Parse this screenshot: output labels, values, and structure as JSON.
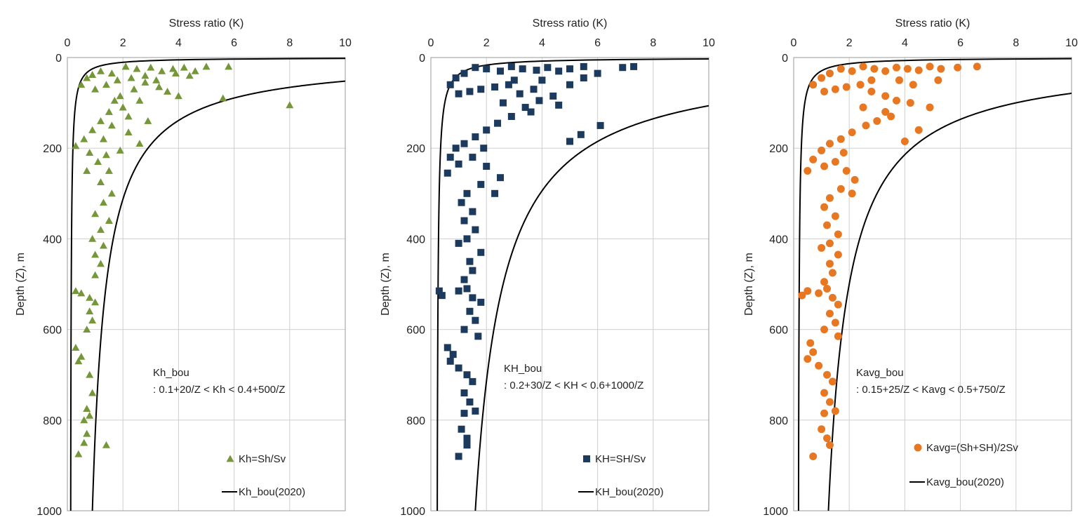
{
  "chart_data": [
    {
      "type": "scatter",
      "xlabel": "Stress ratio (K)",
      "ylabel": "Depth (Z), m",
      "xlim": [
        0,
        10
      ],
      "ylim": [
        0,
        1000
      ],
      "x_ticks": [
        "0",
        "2",
        "4",
        "6",
        "8",
        "10"
      ],
      "y_ticks": [
        "0",
        "200",
        "400",
        "600",
        "800",
        "1000"
      ],
      "grid": true,
      "annotation_line1": "Kh_bou",
      "annotation_line2": ": 0.1+20/Z < Kh < 0.4+500/Z",
      "series": [
        {
          "name": "Kh=Sh/Sv",
          "marker": "triangle",
          "color": "#76963a",
          "lower_a": 0.1,
          "lower_b": 20,
          "upper_a": 0.4,
          "upper_b": 500,
          "points": [
            [
              2.1,
              20
            ],
            [
              2.5,
              25
            ],
            [
              3.0,
              22
            ],
            [
              3.4,
              30
            ],
            [
              3.8,
              25
            ],
            [
              4.2,
              22
            ],
            [
              4.6,
              30
            ],
            [
              5.0,
              20
            ],
            [
              5.8,
              20
            ],
            [
              1.6,
              35
            ],
            [
              1.2,
              30
            ],
            [
              0.9,
              38
            ],
            [
              0.7,
              45
            ],
            [
              0.5,
              60
            ],
            [
              1.0,
              70
            ],
            [
              1.4,
              60
            ],
            [
              1.8,
              50
            ],
            [
              2.3,
              45
            ],
            [
              2.8,
              55
            ],
            [
              3.3,
              65
            ],
            [
              3.6,
              75
            ],
            [
              4.0,
              85
            ],
            [
              2.6,
              95
            ],
            [
              2.0,
              110
            ],
            [
              1.5,
              120
            ],
            [
              1.2,
              140
            ],
            [
              0.9,
              160
            ],
            [
              0.6,
              180
            ],
            [
              0.3,
              195
            ],
            [
              1.6,
              150
            ],
            [
              2.2,
              165
            ],
            [
              2.6,
              190
            ],
            [
              1.9,
              205
            ],
            [
              1.4,
              215
            ],
            [
              1.1,
              230
            ],
            [
              1.5,
              250
            ],
            [
              1.2,
              275
            ],
            [
              1.6,
              300
            ],
            [
              1.3,
              320
            ],
            [
              1.0,
              345
            ],
            [
              1.5,
              360
            ],
            [
              1.2,
              380
            ],
            [
              0.9,
              400
            ],
            [
              1.3,
              415
            ],
            [
              1.0,
              435
            ],
            [
              1.2,
              455
            ],
            [
              1.0,
              480
            ],
            [
              0.3,
              515
            ],
            [
              0.5,
              520
            ],
            [
              0.8,
              530
            ],
            [
              1.0,
              540
            ],
            [
              0.8,
              560
            ],
            [
              0.9,
              580
            ],
            [
              0.7,
              600
            ],
            [
              0.3,
              640
            ],
            [
              0.5,
              660
            ],
            [
              0.4,
              670
            ],
            [
              0.8,
              700
            ],
            [
              0.9,
              740
            ],
            [
              0.7,
              775
            ],
            [
              0.8,
              790
            ],
            [
              0.6,
              800
            ],
            [
              0.7,
              830
            ],
            [
              0.6,
              850
            ],
            [
              1.4,
              855
            ],
            [
              0.4,
              875
            ],
            [
              2.8,
              40
            ],
            [
              3.2,
              50
            ],
            [
              2.4,
              70
            ],
            [
              1.9,
              85
            ],
            [
              1.7,
              95
            ],
            [
              2.2,
              130
            ],
            [
              2.9,
              140
            ],
            [
              5.6,
              90
            ],
            [
              8.0,
              105
            ],
            [
              3.9,
              35
            ],
            [
              4.4,
              40
            ],
            [
              1.3,
              180
            ],
            [
              0.8,
              210
            ],
            [
              0.7,
              250
            ]
          ]
        }
      ],
      "legend_scatter": "Kh=Sh/Sv",
      "legend_line": "Kh_bou(2020)"
    },
    {
      "type": "scatter",
      "xlabel": "Stress ratio (K)",
      "ylabel": "Depth (Z), m",
      "xlim": [
        0,
        10
      ],
      "ylim": [
        0,
        1000
      ],
      "x_ticks": [
        "0",
        "2",
        "4",
        "6",
        "8",
        "10"
      ],
      "y_ticks": [
        "0",
        "200",
        "400",
        "600",
        "800",
        "1000"
      ],
      "grid": true,
      "annotation_line1": "KH_bou",
      "annotation_line2": ": 0.2+30/Z < KH < 0.6+1000/Z",
      "series": [
        {
          "name": "KH=SH/Sv",
          "marker": "square",
          "color": "#1c3a5e",
          "lower_a": 0.2,
          "lower_b": 30,
          "upper_a": 0.6,
          "upper_b": 1000,
          "points": [
            [
              7.3,
              20
            ],
            [
              6.9,
              22
            ],
            [
              5.5,
              20
            ],
            [
              5.0,
              25
            ],
            [
              4.6,
              30
            ],
            [
              4.2,
              22
            ],
            [
              3.8,
              28
            ],
            [
              3.3,
              25
            ],
            [
              2.9,
              20
            ],
            [
              2.5,
              30
            ],
            [
              2.0,
              25
            ],
            [
              1.6,
              22
            ],
            [
              1.2,
              35
            ],
            [
              0.9,
              45
            ],
            [
              0.7,
              60
            ],
            [
              1.0,
              80
            ],
            [
              1.4,
              75
            ],
            [
              1.8,
              70
            ],
            [
              2.3,
              65
            ],
            [
              2.8,
              60
            ],
            [
              3.2,
              80
            ],
            [
              3.7,
              70
            ],
            [
              4.4,
              85
            ],
            [
              5.0,
              60
            ],
            [
              5.5,
              45
            ],
            [
              6.0,
              35
            ],
            [
              6.1,
              150
            ],
            [
              5.4,
              170
            ],
            [
              5.0,
              185
            ],
            [
              4.6,
              105
            ],
            [
              3.9,
              95
            ],
            [
              3.4,
              110
            ],
            [
              2.9,
              130
            ],
            [
              2.4,
              145
            ],
            [
              2.0,
              160
            ],
            [
              1.6,
              175
            ],
            [
              1.2,
              190
            ],
            [
              0.9,
              200
            ],
            [
              0.7,
              220
            ],
            [
              0.6,
              255
            ],
            [
              1.0,
              235
            ],
            [
              1.5,
              220
            ],
            [
              2.0,
              240
            ],
            [
              2.5,
              265
            ],
            [
              1.8,
              280
            ],
            [
              1.3,
              300
            ],
            [
              1.1,
              320
            ],
            [
              1.5,
              340
            ],
            [
              1.2,
              360
            ],
            [
              1.6,
              380
            ],
            [
              1.3,
              400
            ],
            [
              1.0,
              410
            ],
            [
              1.8,
              430
            ],
            [
              1.4,
              450
            ],
            [
              1.5,
              470
            ],
            [
              1.2,
              490
            ],
            [
              0.3,
              515
            ],
            [
              0.4,
              525
            ],
            [
              1.0,
              515
            ],
            [
              1.3,
              510
            ],
            [
              1.5,
              530
            ],
            [
              1.8,
              540
            ],
            [
              1.4,
              560
            ],
            [
              1.6,
              580
            ],
            [
              1.2,
              600
            ],
            [
              1.7,
              615
            ],
            [
              0.6,
              640
            ],
            [
              0.8,
              655
            ],
            [
              0.7,
              670
            ],
            [
              1.0,
              685
            ],
            [
              1.3,
              700
            ],
            [
              1.5,
              715
            ],
            [
              1.2,
              740
            ],
            [
              1.4,
              760
            ],
            [
              1.2,
              785
            ],
            [
              1.6,
              780
            ],
            [
              1.1,
              820
            ],
            [
              1.3,
              840
            ],
            [
              1.3,
              855
            ],
            [
              1.0,
              880
            ],
            [
              3.0,
              50
            ],
            [
              4.0,
              50
            ],
            [
              2.6,
              100
            ],
            [
              3.6,
              120
            ],
            [
              1.9,
              200
            ],
            [
              2.3,
              300
            ]
          ]
        }
      ],
      "legend_scatter": "KH=SH/Sv",
      "legend_line": "KH_bou(2020)"
    },
    {
      "type": "scatter",
      "xlabel": "Stress ratio (K)",
      "ylabel": "Depth (Z), m",
      "xlim": [
        0,
        10
      ],
      "ylim": [
        0,
        1000
      ],
      "x_ticks": [
        "0",
        "2",
        "4",
        "6",
        "8",
        "10"
      ],
      "y_ticks": [
        "0",
        "200",
        "400",
        "600",
        "800",
        "1000"
      ],
      "grid": true,
      "annotation_line1": "Kavg_bou",
      "annotation_line2": ": 0.15+25/Z < Kavg < 0.5+750/Z",
      "series": [
        {
          "name": "Kavg=(Sh+SH)/2Sv",
          "marker": "circle",
          "color": "#e87722",
          "lower_a": 0.15,
          "lower_b": 25,
          "upper_a": 0.5,
          "upper_b": 750,
          "points": [
            [
              6.6,
              20
            ],
            [
              5.9,
              22
            ],
            [
              5.3,
              25
            ],
            [
              4.9,
              20
            ],
            [
              4.5,
              28
            ],
            [
              4.1,
              25
            ],
            [
              3.7,
              22
            ],
            [
              3.3,
              30
            ],
            [
              2.9,
              25
            ],
            [
              2.5,
              20
            ],
            [
              2.1,
              30
            ],
            [
              1.7,
              25
            ],
            [
              1.3,
              35
            ],
            [
              1.0,
              45
            ],
            [
              0.7,
              60
            ],
            [
              1.1,
              75
            ],
            [
              1.5,
              70
            ],
            [
              1.9,
              65
            ],
            [
              2.4,
              60
            ],
            [
              2.8,
              75
            ],
            [
              3.3,
              85
            ],
            [
              3.7,
              95
            ],
            [
              4.2,
              100
            ],
            [
              4.9,
              110
            ],
            [
              4.5,
              160
            ],
            [
              4.0,
              185
            ],
            [
              3.5,
              130
            ],
            [
              3.0,
              140
            ],
            [
              2.6,
              150
            ],
            [
              2.1,
              165
            ],
            [
              1.7,
              180
            ],
            [
              1.3,
              190
            ],
            [
              1.0,
              205
            ],
            [
              0.7,
              225
            ],
            [
              0.5,
              250
            ],
            [
              1.1,
              240
            ],
            [
              1.5,
              230
            ],
            [
              1.9,
              250
            ],
            [
              2.2,
              270
            ],
            [
              1.7,
              290
            ],
            [
              1.3,
              310
            ],
            [
              1.1,
              330
            ],
            [
              1.5,
              350
            ],
            [
              1.2,
              370
            ],
            [
              1.6,
              390
            ],
            [
              1.3,
              410
            ],
            [
              1.0,
              420
            ],
            [
              1.6,
              435
            ],
            [
              1.3,
              455
            ],
            [
              1.4,
              475
            ],
            [
              1.1,
              495
            ],
            [
              0.3,
              525
            ],
            [
              0.5,
              515
            ],
            [
              0.9,
              520
            ],
            [
              1.2,
              510
            ],
            [
              1.4,
              530
            ],
            [
              1.6,
              545
            ],
            [
              1.3,
              565
            ],
            [
              1.5,
              585
            ],
            [
              1.1,
              600
            ],
            [
              1.6,
              615
            ],
            [
              0.6,
              630
            ],
            [
              0.7,
              650
            ],
            [
              0.5,
              665
            ],
            [
              0.9,
              680
            ],
            [
              1.2,
              700
            ],
            [
              1.4,
              715
            ],
            [
              1.1,
              740
            ],
            [
              1.3,
              760
            ],
            [
              1.1,
              785
            ],
            [
              1.5,
              780
            ],
            [
              1.0,
              820
            ],
            [
              1.2,
              840
            ],
            [
              1.3,
              855
            ],
            [
              0.7,
              880
            ],
            [
              2.8,
              50
            ],
            [
              3.8,
              50
            ],
            [
              2.5,
              110
            ],
            [
              3.3,
              120
            ],
            [
              1.8,
              210
            ],
            [
              2.1,
              300
            ],
            [
              5.2,
              50
            ],
            [
              4.3,
              60
            ]
          ]
        }
      ],
      "legend_scatter": "Kavg=(Sh+SH)/2Sv",
      "legend_line": "Kavg_bou(2020)"
    }
  ]
}
